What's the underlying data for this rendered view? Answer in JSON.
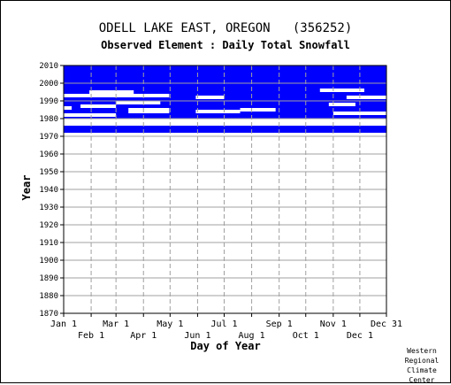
{
  "chart_data": {
    "type": "heatmap",
    "title": "ODELL LAKE EAST, OREGON   (356252)",
    "subtitle": "Observed Element : Daily Total Snowfall",
    "xlabel": "Day of Year",
    "ylabel": "Year",
    "ylim": [
      1870,
      2010
    ],
    "xlim": [
      1,
      365
    ],
    "y_ticks": [
      1870,
      1880,
      1890,
      1900,
      1910,
      1920,
      1930,
      1940,
      1950,
      1960,
      1970,
      1980,
      1990,
      2000,
      2010
    ],
    "x_ticks_top": [
      "Jan 1",
      "Mar 1",
      "May 1",
      "Jul 1",
      "Sep 1",
      "Nov 1",
      "Dec 31"
    ],
    "x_ticks_top_days": [
      1,
      60,
      121,
      182,
      244,
      305,
      365
    ],
    "x_ticks_bottom": [
      "Feb 1",
      "Apr 1",
      "Jun 1",
      "Aug 1",
      "Oct 1",
      "Dec 1"
    ],
    "x_ticks_bottom_days": [
      32,
      91,
      152,
      213,
      274,
      335
    ],
    "grid": true,
    "series": [
      {
        "color": "#0000ff",
        "records": [
          {
            "years": [
              1972,
              1974
            ],
            "days": [
              1,
              365
            ]
          },
          {
            "years": [
              1974,
              1976
            ],
            "days": [
              1,
              365
            ]
          },
          {
            "years": [
              1980,
              1984
            ],
            "days": [
              1,
              365
            ]
          },
          {
            "years": [
              1984,
              1987
            ],
            "days": [
              1,
              365
            ]
          },
          {
            "years": [
              1987,
              1992
            ],
            "days": [
              1,
              365
            ]
          },
          {
            "years": [
              1992,
              1998
            ],
            "days": [
              1,
              365
            ]
          },
          {
            "years": [
              1998,
              2010
            ],
            "days": [
              1,
              365
            ]
          }
        ],
        "gaps": [
          {
            "years": [
              1981,
              1983
            ],
            "days": [
              1,
              60
            ]
          },
          {
            "years": [
              1985,
              1987
            ],
            "days": [
              1,
              10
            ]
          },
          {
            "years": [
              1986,
              1988
            ],
            "days": [
              20,
              60
            ]
          },
          {
            "years": [
              1983,
              1986
            ],
            "days": [
              74,
              120
            ]
          },
          {
            "years": [
              1988,
              1990
            ],
            "days": [
              60,
              110
            ]
          },
          {
            "years": [
              1992,
              1994
            ],
            "days": [
              1,
              120
            ]
          },
          {
            "years": [
              1994,
              1996
            ],
            "days": [
              30,
              80
            ]
          },
          {
            "years": [
              1983,
              1985
            ],
            "days": [
              150,
              200
            ]
          },
          {
            "years": [
              1984,
              1986
            ],
            "days": [
              200,
              240
            ]
          },
          {
            "years": [
              1991,
              1993
            ],
            "days": [
              150,
              182
            ]
          },
          {
            "years": [
              1982,
              1984
            ],
            "days": [
              305,
              365
            ]
          },
          {
            "years": [
              1987,
              1989
            ],
            "days": [
              300,
              330
            ]
          },
          {
            "years": [
              1991,
              1993
            ],
            "days": [
              320,
              365
            ]
          },
          {
            "years": [
              1995,
              1997
            ],
            "days": [
              290,
              340
            ]
          },
          {
            "years": [
              1976,
              1980
            ],
            "days": [
              1,
              365
            ]
          }
        ]
      }
    ]
  },
  "footer": [
    "Western",
    "Regional",
    "Climate",
    "Center"
  ]
}
